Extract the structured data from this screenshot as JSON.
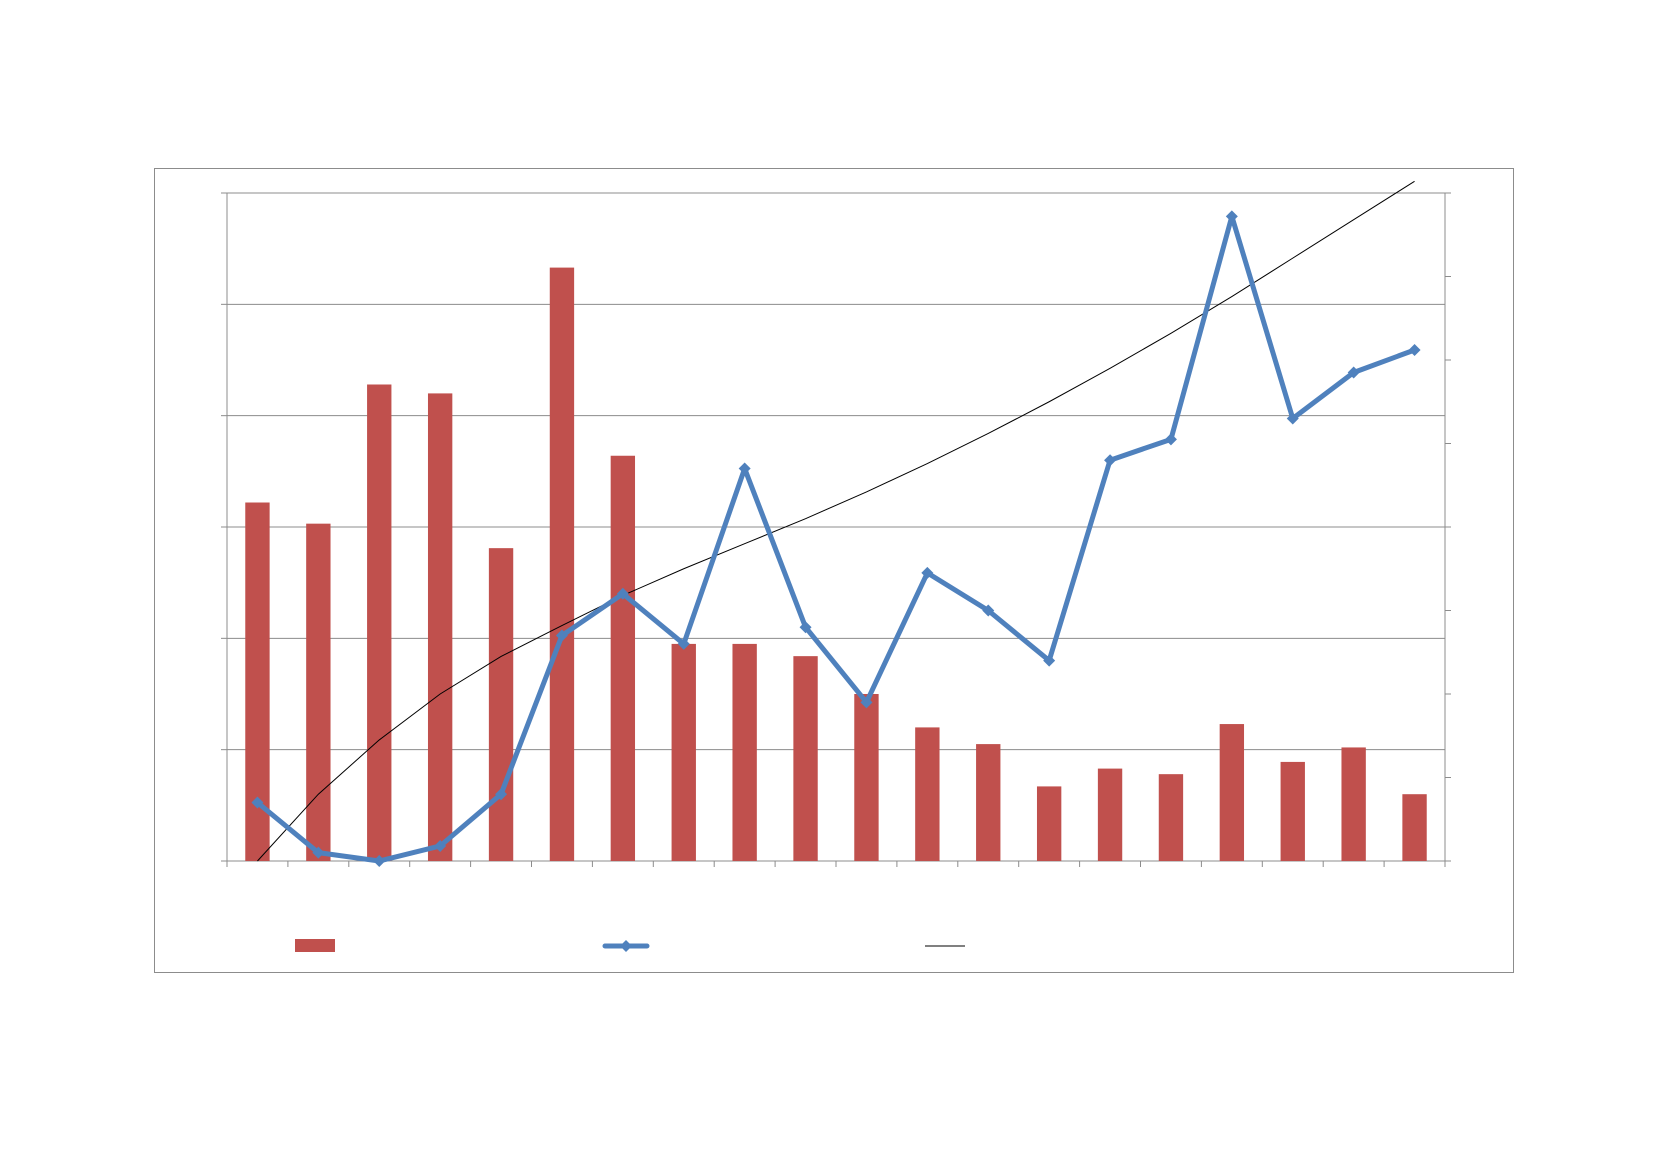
{
  "chart_data": {
    "type": "bar",
    "title": "",
    "xlabel": "",
    "ylabel_left": "",
    "ylabel_right": "",
    "categories": [
      "",
      "",
      "",
      "",
      "",
      "",
      "",
      "",
      "",
      "",
      "",
      "",
      "",
      "",
      "",
      "",
      "",
      "",
      "",
      ""
    ],
    "left_axis": {
      "ylim": [
        0,
        6
      ],
      "major_step": 1,
      "gridlines": true
    },
    "right_axis": {
      "ylim": [
        0,
        8
      ],
      "major_step": 1
    },
    "series": [
      {
        "kind": "bar",
        "axis": "left",
        "color": "#C0504D",
        "values": [
          3.22,
          3.03,
          4.28,
          4.2,
          2.81,
          5.33,
          3.64,
          1.95,
          1.95,
          1.84,
          1.5,
          1.2,
          1.05,
          0.67,
          0.83,
          0.78,
          1.23,
          0.89,
          1.02,
          0.6
        ]
      },
      {
        "kind": "line",
        "axis": "right",
        "color": "#4F81BD",
        "marker": "diamond",
        "values": [
          0.7,
          0.1,
          0.0,
          0.18,
          0.8,
          2.7,
          3.2,
          2.6,
          4.7,
          2.8,
          1.9,
          3.45,
          3.0,
          2.4,
          4.8,
          5.05,
          7.72,
          5.3,
          5.85,
          6.12
        ]
      },
      {
        "kind": "trendline",
        "axis": "right",
        "color": "#000000",
        "values": [
          0.0,
          0.8,
          1.45,
          2.0,
          2.45,
          2.82,
          3.18,
          3.5,
          3.8,
          4.1,
          4.42,
          4.76,
          5.12,
          5.5,
          5.9,
          6.32,
          6.76,
          7.22,
          7.68,
          8.14
        ]
      }
    ],
    "legend": {
      "position": "bottom",
      "entries": [
        "",
        "",
        ""
      ]
    }
  }
}
